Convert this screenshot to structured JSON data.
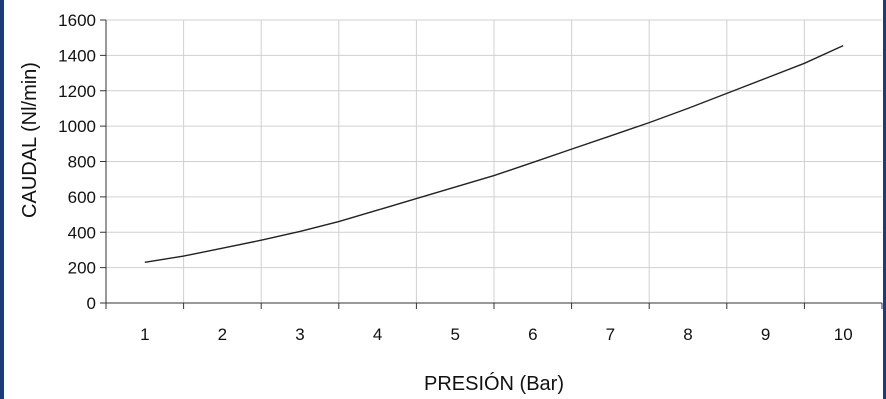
{
  "chart_data": {
    "type": "line",
    "title": "",
    "xlabel": "PRESIÓN (Bar)",
    "ylabel": "CAUDAL (Nl/min)",
    "ylim": [
      0,
      1600
    ],
    "yticks": [
      "0",
      "200",
      "400",
      "600",
      "800",
      "1000",
      "1200",
      "1400",
      "1600"
    ],
    "xticks": [
      "1",
      "2",
      "3",
      "4",
      "5",
      "6",
      "7",
      "8",
      "9",
      "10"
    ],
    "xlim": [
      0.5,
      10.5
    ],
    "grid": true,
    "legend": "none",
    "series": [
      {
        "x": [
          1,
          1.5,
          2,
          2.5,
          3,
          3.5,
          4,
          4.5,
          5,
          5.5,
          6,
          6.5,
          7,
          7.5,
          8,
          8.5,
          9,
          9.5,
          10
        ],
        "values": [
          230,
          265,
          310,
          355,
          405,
          460,
          525,
          590,
          655,
          720,
          795,
          870,
          945,
          1020,
          1100,
          1185,
          1270,
          1355,
          1455
        ],
        "color": "#222222"
      }
    ]
  }
}
